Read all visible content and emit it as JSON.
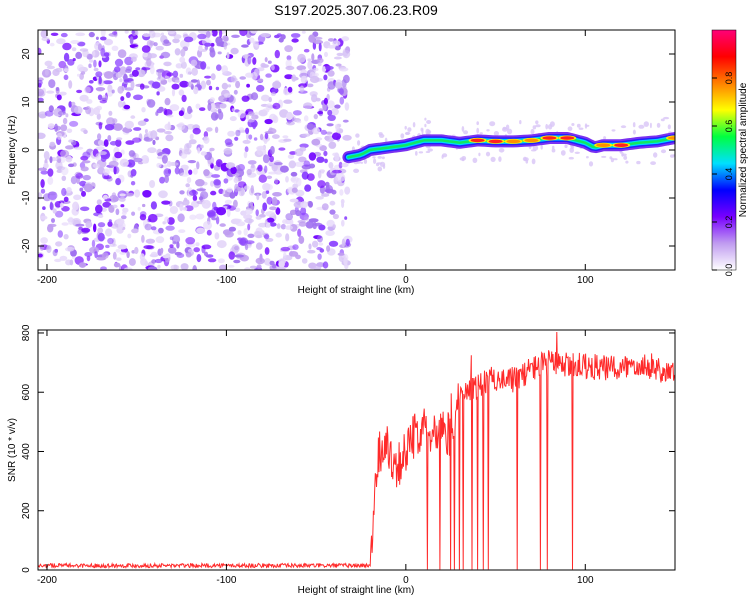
{
  "title": "S197.2025.307.06.23.R09",
  "chart_data": [
    {
      "type": "heatmap",
      "xlabel": "Height of straight line (km)",
      "ylabel": "Frequency (Hz)",
      "xlim": [
        -205,
        150
      ],
      "ylim": [
        -25,
        25
      ],
      "x_ticks": [
        -200,
        -100,
        0,
        100
      ],
      "y_ticks": [
        -20,
        -10,
        0,
        10,
        20
      ],
      "colorbar": {
        "label": "Normalized spectral amplitude",
        "range": [
          0.0,
          1.0
        ],
        "ticks": [
          0.0,
          0.2,
          0.4,
          0.6,
          0.8
        ],
        "tick_labels": [
          "0.0",
          "0.2",
          "0.4",
          "0.6",
          "0.8"
        ],
        "colormap": [
          "#ffffff",
          "#c09cf0",
          "#7800ff",
          "#0000ff",
          "#00e0ff",
          "#00ff40",
          "#ffff00",
          "#ff8000",
          "#ff0000",
          "#ff0078"
        ]
      },
      "noise_region": {
        "x_range": [
          -205,
          -32
        ],
        "level": 0.1
      },
      "ridge": {
        "x": [
          -32,
          -25,
          -20,
          -10,
          0,
          10,
          20,
          30,
          40,
          50,
          60,
          70,
          80,
          90,
          100,
          105,
          110,
          120,
          130,
          140,
          150
        ],
        "frequency": [
          -1.5,
          -1.0,
          0.0,
          0.5,
          1.0,
          2.0,
          2.0,
          1.5,
          2.0,
          1.8,
          1.8,
          2.0,
          2.5,
          2.5,
          1.5,
          0.5,
          1.0,
          1.0,
          1.5,
          1.8,
          2.5
        ],
        "amplitude": [
          0.3,
          0.5,
          0.55,
          0.5,
          0.55,
          0.55,
          0.6,
          0.6,
          0.85,
          0.9,
          0.75,
          0.7,
          0.9,
          0.85,
          0.6,
          0.5,
          0.75,
          0.85,
          0.5,
          0.6,
          0.7
        ]
      }
    },
    {
      "type": "line",
      "xlabel": "Height of straight line (km)",
      "ylabel": "SNR (10 * v/v)",
      "xlim": [
        -205,
        150
      ],
      "ylim": [
        0,
        810
      ],
      "x_ticks": [
        -200,
        -100,
        0,
        100
      ],
      "y_ticks": [
        0,
        200,
        400,
        600,
        800
      ],
      "color": "#ff2a2a",
      "baseline": {
        "x": [
          -205,
          -20
        ],
        "value": 15
      },
      "envelope": {
        "x": [
          -20,
          -17,
          -15,
          -10,
          -5,
          0,
          5,
          10,
          15,
          20,
          25,
          30,
          40,
          50,
          60,
          70,
          80,
          90,
          100,
          110,
          120,
          130,
          140,
          150
        ],
        "value": [
          15,
          300,
          400,
          420,
          350,
          400,
          450,
          500,
          470,
          500,
          450,
          600,
          620,
          650,
          640,
          680,
          700,
          690,
          690,
          680,
          680,
          700,
          680,
          660
        ]
      },
      "dropouts": [
        12,
        19,
        25,
        27,
        30,
        32,
        37,
        40,
        43,
        46,
        62,
        75,
        79,
        93
      ]
    }
  ]
}
